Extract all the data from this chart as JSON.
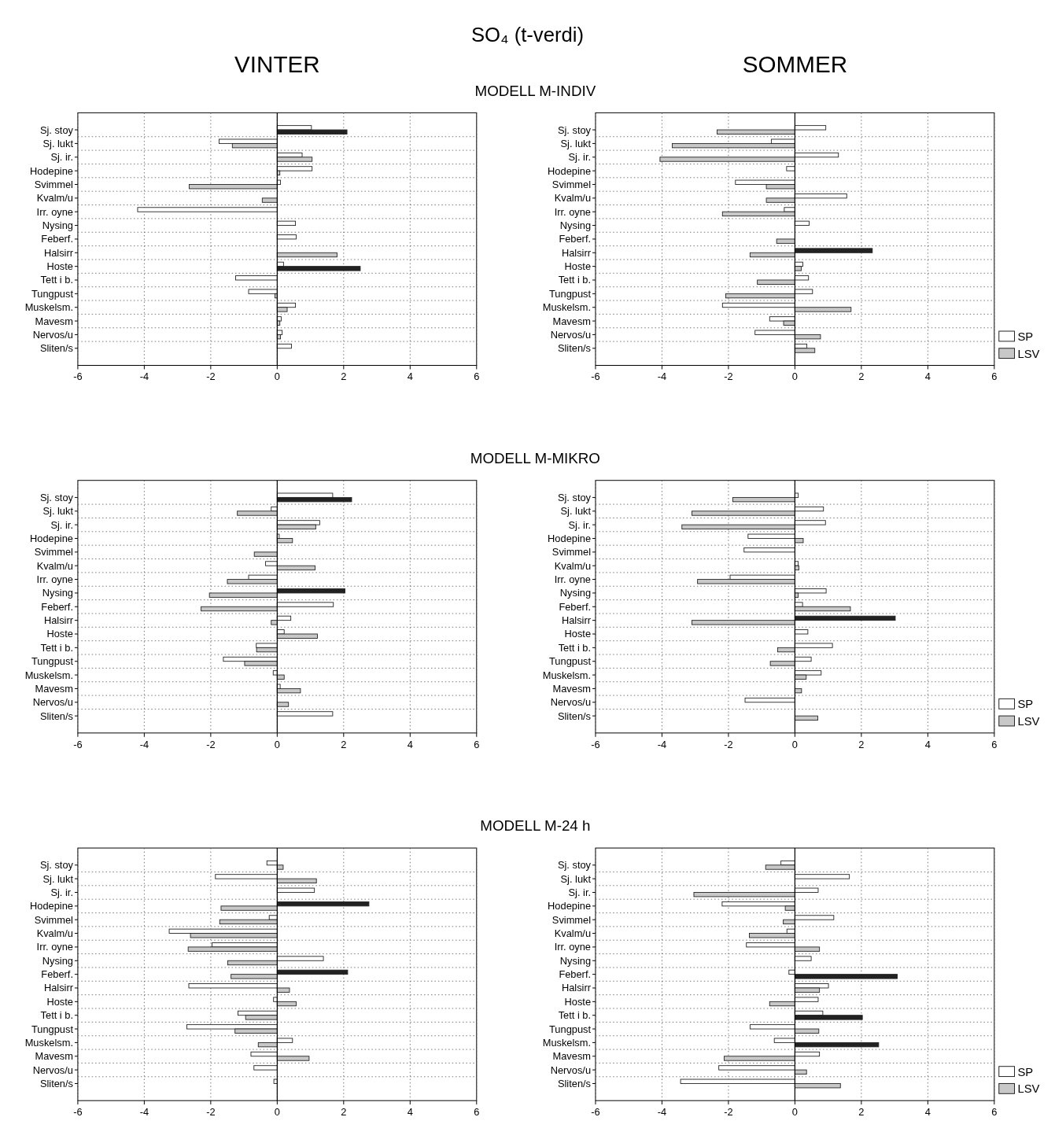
{
  "chart_data": [
    {
      "type": "bar",
      "orientation": "horizontal",
      "title": "SO₄ (t-verdi)",
      "subtitle": "VINTER",
      "annotations": [
        "MODELL M-INDIV"
      ],
      "categories": [
        "Sj. stoy",
        "Sj. lukt",
        "Sj. ir.",
        "Hodepine",
        "Svimmel",
        "Kvalm/u",
        "Irr. oyne",
        "Nysing",
        "Feberf.",
        "Halsirr",
        "Hoste",
        "Tett i b.",
        "Tungpust",
        "Muskelsm.",
        "Mavesm",
        "Nervos/u",
        "Sliten/s"
      ],
      "xlim": [
        -6,
        6
      ],
      "xticks": [
        -6,
        -4,
        -2,
        0,
        2,
        4,
        6
      ],
      "grid": true,
      "legend": false,
      "series": [
        {
          "color": "#ffffff",
          "values": [
            1.03,
            -1.75,
            0.75,
            1.05,
            0.1,
            null,
            -4.2,
            0.55,
            0.57,
            null,
            0.19,
            -1.25,
            -0.86,
            0.55,
            0.12,
            0.15,
            0.43
          ]
        },
        {
          "colors": [
            "#222222",
            "#c8c8c8",
            "#c8c8c8",
            "#c8c8c8",
            "#c8c8c8",
            "#c8c8c8",
            null,
            null,
            null,
            "#c8c8c8",
            "#222222",
            null,
            "#c8c8c8",
            "#c8c8c8",
            "#c8c8c8",
            "#c8c8c8",
            null
          ],
          "values": [
            2.1,
            -1.35,
            1.05,
            0.08,
            -2.65,
            -0.45,
            null,
            null,
            null,
            1.8,
            2.5,
            null,
            -0.07,
            0.3,
            0.08,
            0.1,
            null
          ]
        }
      ]
    },
    {
      "type": "bar",
      "orientation": "horizontal",
      "subtitle": "SOMMER",
      "categories": [
        "Sj. stoy",
        "Sj. lukt",
        "Sj. ir.",
        "Hodepine",
        "Svimmel",
        "Kvalm/u",
        "Irr. oyne",
        "Nysing",
        "Feberf.",
        "Halsirr",
        "Hoste",
        "Tett i b.",
        "Tungpust",
        "Muskelsm.",
        "Mavesm",
        "Nervos/u",
        "Sliten/s"
      ],
      "xlim": [
        -6,
        6
      ],
      "xticks": [
        -6,
        -4,
        -2,
        0,
        2,
        4,
        6
      ],
      "grid": true,
      "legend": "bottom right",
      "series": [
        {
          "name": "SP",
          "color": "#ffffff",
          "colors": [
            "#ffffff",
            "#ffffff",
            "#ffffff",
            "#ffffff",
            "#ffffff",
            "#ffffff",
            "#ffffff",
            "#ffffff",
            null,
            "#222222",
            "#ffffff",
            "#ffffff",
            "#ffffff",
            "#ffffff",
            "#ffffff",
            "#ffffff",
            "#ffffff"
          ],
          "values": [
            0.93,
            -0.71,
            1.31,
            -0.25,
            -1.79,
            1.56,
            -0.32,
            0.43,
            null,
            2.33,
            0.24,
            0.41,
            0.53,
            -2.18,
            -0.76,
            -1.2,
            0.36
          ]
        },
        {
          "name": "LSV",
          "color": "#c8c8c8",
          "values": [
            -2.34,
            -3.69,
            -4.06,
            null,
            -0.86,
            -0.86,
            -2.18,
            null,
            -0.55,
            -1.35,
            0.19,
            -1.13,
            -2.08,
            1.69,
            -0.34,
            0.77,
            0.6
          ]
        }
      ]
    },
    {
      "type": "bar",
      "orientation": "horizontal",
      "annotations": [
        "MODELL M-MIKRO"
      ],
      "categories": [
        "Sj. stoy",
        "Sj. lukt",
        "Sj. ir.",
        "Hodepine",
        "Svimmel",
        "Kvalm/u",
        "Irr. oyne",
        "Nysing",
        "Feberf.",
        "Halsirr",
        "Hoste",
        "Tett i b.",
        "Tungpust",
        "Muskelsm.",
        "Mavesm",
        "Nervos/u",
        "Sliten/s"
      ],
      "xlim": [
        -6,
        6
      ],
      "xticks": [
        -6,
        -4,
        -2,
        0,
        2,
        4,
        6
      ],
      "grid": true,
      "legend": false,
      "series": [
        {
          "colors": [
            "#ffffff",
            "#ffffff",
            "#ffffff",
            "#ffffff",
            null,
            "#ffffff",
            "#ffffff",
            "#222222",
            "#ffffff",
            "#ffffff",
            "#ffffff",
            "#ffffff",
            "#ffffff",
            "#ffffff",
            "#ffffff",
            null,
            "#ffffff"
          ],
          "values": [
            1.67,
            -0.18,
            1.28,
            0.06,
            null,
            -0.35,
            -0.86,
            2.04,
            1.69,
            0.41,
            0.21,
            -0.63,
            -1.62,
            -0.12,
            0.09,
            null,
            1.67
          ]
        },
        {
          "colors": [
            "#222222",
            "#c8c8c8",
            "#c8c8c8",
            "#c8c8c8",
            "#c8c8c8",
            "#c8c8c8",
            "#c8c8c8",
            "#c8c8c8",
            "#c8c8c8",
            "#c8c8c8",
            "#c8c8c8",
            "#c8c8c8",
            "#c8c8c8",
            "#c8c8c8",
            "#c8c8c8",
            "#c8c8c8",
            null
          ],
          "values": [
            2.24,
            -1.2,
            1.16,
            0.46,
            -0.69,
            1.14,
            -1.5,
            -2.04,
            -2.29,
            -0.18,
            1.21,
            -0.62,
            -0.98,
            0.21,
            0.7,
            0.34,
            null
          ]
        }
      ]
    },
    {
      "type": "bar",
      "orientation": "horizontal",
      "categories": [
        "Sj. stoy",
        "Sj. lukt",
        "Sj. ir.",
        "Hodepine",
        "Svimmel",
        "Kvalm/u",
        "Irr. oyne",
        "Nysing",
        "Feberf.",
        "Halsirr",
        "Hoste",
        "Tett i b.",
        "Tungpust",
        "Muskelsm.",
        "Mavesm",
        "Nervos/u",
        "Sliten/s"
      ],
      "xlim": [
        -6,
        6
      ],
      "xticks": [
        -6,
        -4,
        -2,
        0,
        2,
        4,
        6
      ],
      "grid": true,
      "legend": "bottom right",
      "series": [
        {
          "name": "SP",
          "color": "#ffffff",
          "colors": [
            "#ffffff",
            "#ffffff",
            "#ffffff",
            "#ffffff",
            "#ffffff",
            "#ffffff",
            "#ffffff",
            "#ffffff",
            "#ffffff",
            "#222222",
            "#ffffff",
            "#ffffff",
            "#ffffff",
            "#ffffff",
            null,
            "#ffffff",
            null
          ],
          "values": [
            0.1,
            0.86,
            0.92,
            -1.41,
            -1.53,
            0.1,
            -1.95,
            0.94,
            0.23,
            3.02,
            0.39,
            1.13,
            0.49,
            0.79,
            null,
            -1.5,
            null
          ]
        },
        {
          "name": "LSV",
          "color": "#c8c8c8",
          "values": [
            -1.87,
            -3.1,
            -3.4,
            0.25,
            null,
            0.12,
            -2.93,
            0.1,
            1.67,
            -3.1,
            null,
            -0.52,
            -0.74,
            0.34,
            0.2,
            null,
            0.69
          ]
        }
      ]
    },
    {
      "type": "bar",
      "orientation": "horizontal",
      "annotations": [
        "MODELL M-24 h"
      ],
      "categories": [
        "Sj. stoy",
        "Sj. lukt",
        "Sj. ir.",
        "Hodepine",
        "Svimmel",
        "Kvalm/u",
        "Irr. oyne",
        "Nysing",
        "Feberf.",
        "Halsirr",
        "Hoste",
        "Tett i b.",
        "Tungpust",
        "Muskelsm.",
        "Mavesm",
        "Nervos/u",
        "Sliten/s"
      ],
      "xlim": [
        -6,
        6
      ],
      "xticks": [
        -6,
        -4,
        -2,
        0,
        2,
        4,
        6
      ],
      "grid": true,
      "legend": false,
      "series": [
        {
          "colors": [
            "#ffffff",
            "#ffffff",
            "#ffffff",
            "#222222",
            "#ffffff",
            "#ffffff",
            "#ffffff",
            "#ffffff",
            "#222222",
            "#ffffff",
            "#ffffff",
            "#ffffff",
            "#ffffff",
            "#ffffff",
            "#ffffff",
            "#ffffff",
            "#ffffff"
          ],
          "values": [
            -0.31,
            -1.86,
            1.12,
            2.76,
            -0.24,
            -3.25,
            -1.96,
            1.39,
            2.12,
            -2.66,
            -0.11,
            -1.18,
            -2.72,
            0.46,
            -0.79,
            -0.7,
            -0.1
          ]
        },
        {
          "color": "#c8c8c8",
          "values": [
            0.18,
            1.18,
            null,
            -1.69,
            -1.73,
            -2.61,
            -2.68,
            -1.49,
            -1.39,
            0.37,
            0.57,
            -0.95,
            -1.27,
            -0.57,
            0.96,
            null,
            null
          ]
        }
      ]
    },
    {
      "type": "bar",
      "orientation": "horizontal",
      "categories": [
        "Sj. stoy",
        "Sj. lukt",
        "Sj. ir.",
        "Hodepine",
        "Svimmel",
        "Kvalm/u",
        "Irr. oyne",
        "Nysing",
        "Feberf.",
        "Halsirr",
        "Hoste",
        "Tett i b.",
        "Tungpust",
        "Muskelsm.",
        "Mavesm",
        "Nervos/u",
        "Sliten/s"
      ],
      "xlim": [
        -6,
        6
      ],
      "xticks": [
        -6,
        -4,
        -2,
        0,
        2,
        4,
        6
      ],
      "grid": true,
      "legend": "bottom right",
      "series": [
        {
          "name": "SP",
          "color": "#ffffff",
          "values": [
            -0.42,
            1.64,
            0.7,
            -2.19,
            1.17,
            -0.24,
            -1.46,
            0.49,
            -0.18,
            1.01,
            0.7,
            0.84,
            -1.35,
            -0.62,
            0.74,
            -2.29,
            -3.44
          ]
        },
        {
          "name": "LSV",
          "color": "#c8c8c8",
          "colors": [
            "#c8c8c8",
            null,
            "#c8c8c8",
            "#c8c8c8",
            "#c8c8c8",
            "#c8c8c8",
            "#c8c8c8",
            null,
            "#222222",
            "#c8c8c8",
            "#c8c8c8",
            "#222222",
            "#c8c8c8",
            "#222222",
            "#c8c8c8",
            "#c8c8c8",
            "#c8c8c8"
          ],
          "values": [
            -0.88,
            null,
            -3.04,
            -0.29,
            -0.35,
            -1.37,
            0.74,
            null,
            3.08,
            0.74,
            -0.76,
            2.03,
            0.72,
            2.52,
            -2.13,
            0.35,
            1.37
          ]
        }
      ]
    }
  ]
}
